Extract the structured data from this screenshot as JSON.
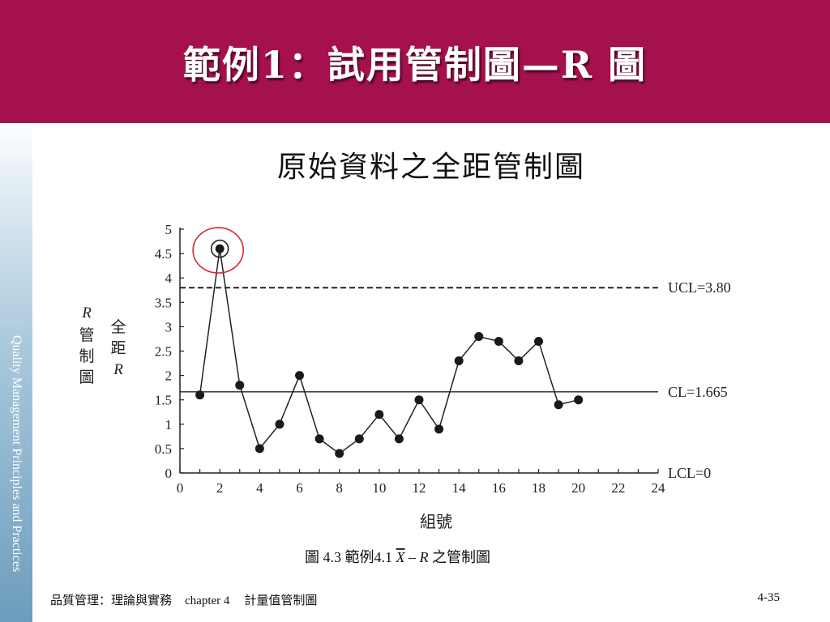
{
  "slide": {
    "title": "範例1：試用管制圖—R 圖",
    "subtitle": "原始資料之全距管制圖",
    "side_text": "Quality Management Principles and Practices",
    "footer_book": "品質管理：理論與實務",
    "footer_chapter": "chapter 4",
    "footer_section": "計量值管制圖",
    "page_number": "4-35",
    "header_color": "#a5114d"
  },
  "chart_data": {
    "type": "line",
    "x": [
      1,
      2,
      3,
      4,
      5,
      6,
      7,
      8,
      9,
      10,
      11,
      12,
      13,
      14,
      15,
      16,
      17,
      18,
      19,
      20
    ],
    "values": [
      1.6,
      4.6,
      1.8,
      0.5,
      1.0,
      2.0,
      0.7,
      0.4,
      0.7,
      1.2,
      0.7,
      1.5,
      0.9,
      2.3,
      2.8,
      2.7,
      2.3,
      2.7,
      1.4,
      1.5
    ],
    "xlim": [
      0,
      24
    ],
    "ylim": [
      0,
      5
    ],
    "xticks": [
      0,
      2,
      4,
      6,
      8,
      10,
      12,
      14,
      16,
      18,
      20,
      22,
      24
    ],
    "xtick_labels": [
      "0",
      "2",
      "4",
      "6",
      "8",
      "10",
      "12",
      "14",
      "16",
      "18",
      "20",
      "22",
      "24"
    ],
    "yticks": [
      0,
      0.5,
      1,
      1.5,
      2,
      2.5,
      3,
      3.5,
      4,
      4.5,
      5
    ],
    "ytick_labels": [
      "0",
      "0.5",
      "1",
      "1.5",
      "2",
      "2.5",
      "3",
      "3.5",
      "4",
      "4.5",
      "5"
    ],
    "xlabel": "組號",
    "ylabel_left": [
      "R",
      "管",
      "制",
      "圖"
    ],
    "ylabel_right": [
      "全",
      "距",
      "R"
    ],
    "ucl": {
      "value": 3.8,
      "label": "UCL=3.80"
    },
    "cl": {
      "value": 1.665,
      "label": "CL=1.665"
    },
    "lcl": {
      "value": 0,
      "label": "LCL=0"
    },
    "out_of_control_index": 1,
    "highlight_color": "#d62a2a",
    "caption": {
      "prefix": "圖 4.3  範例4.1 ",
      "xbar": "X",
      "dash": " – ",
      "r": "R",
      "suffix": " 之管制圖"
    }
  }
}
